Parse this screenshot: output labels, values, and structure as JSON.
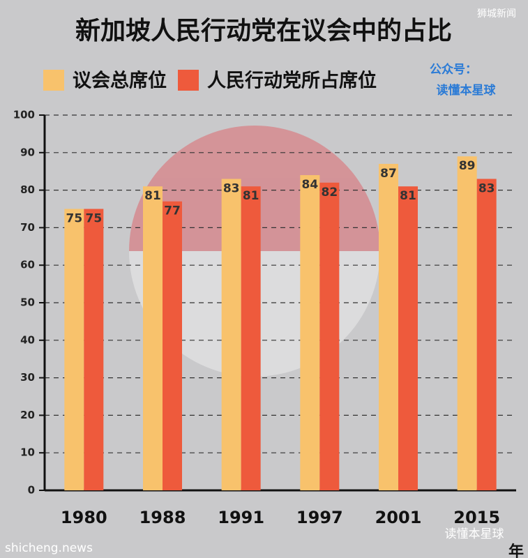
{
  "chart_data": {
    "type": "bar",
    "title": "新加坡人民行动党在议会中的占比",
    "categories": [
      "1980",
      "1988",
      "1991",
      "1997",
      "2001",
      "2015"
    ],
    "series": [
      {
        "name": "议会总席位",
        "color": "#f8c26c",
        "values": [
          75,
          81,
          83,
          84,
          87,
          89
        ]
      },
      {
        "name": "人民行动党所占席位",
        "color": "#ee5a3c",
        "values": [
          75,
          77,
          81,
          82,
          81,
          83
        ]
      }
    ],
    "x_label": "年",
    "ylim": [
      0,
      100
    ],
    "yticks": [
      0,
      10,
      20,
      30,
      40,
      50,
      60,
      70,
      80,
      90,
      100
    ],
    "grid": true,
    "legend": "top-left"
  },
  "watermarks": {
    "account_label": "公众号：",
    "account_name": "读懂本星球",
    "top_right": "狮城新闻",
    "bottom_left": "shicheng.news",
    "bottom_right": "读懂本星球"
  }
}
